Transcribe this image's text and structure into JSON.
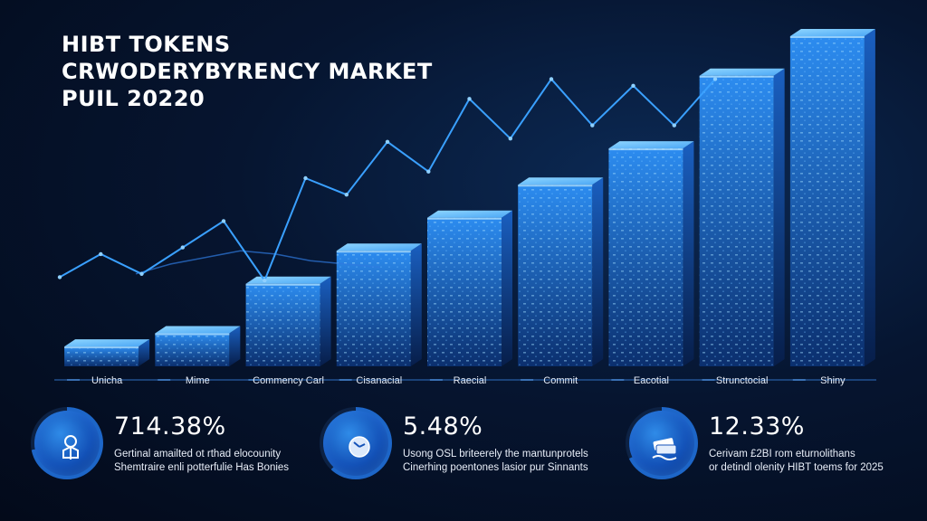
{
  "chart_data": {
    "type": "bar",
    "title": [
      "HIBT TOKENS",
      "CRWODERYBYRENCY MARKET",
      "PUIL 20220"
    ],
    "categories": [
      "Unicha",
      "Mime",
      "Commency Carl",
      "Cisanacial",
      "Raecial",
      "Commit",
      "Eacotial",
      "Strunctocial",
      "Shiny"
    ],
    "values": [
      6,
      10,
      25,
      35,
      45,
      55,
      66,
      88,
      100
    ],
    "ylim": [
      0,
      100
    ],
    "line_series": {
      "values": [
        27,
        34,
        28,
        36,
        44,
        26,
        57,
        52,
        68,
        59,
        81,
        69,
        87,
        73,
        85,
        73,
        87
      ],
      "color": "#3aa0ff"
    },
    "secondary_line": {
      "values": [
        28,
        31,
        33,
        35,
        34,
        32,
        31,
        30
      ],
      "color": "#2f7be0"
    },
    "grid": false,
    "bar_color": "#1f7fe0",
    "bar_top_color": "#6cc4ff"
  },
  "stats": [
    {
      "value": "714.38%",
      "line1": "Gertinal amailted ot rthad elocounity",
      "line2": "Shemtraire enli potterfulie Has Bonies",
      "icon": "token-icon"
    },
    {
      "value": "5.48%",
      "line1": "Usong OSL briteerely the mantunprotels",
      "line2": "Cinerhing poentones lasior pur Sinnants",
      "icon": "clock-icon"
    },
    {
      "value": "12.33%",
      "line1": "Cerivam £2BI rom eturnolithans",
      "line2": "or detindl olenity HIBT toems for 2025",
      "icon": "money-icon"
    }
  ],
  "colors": {
    "accent": "#3aa0ff",
    "ring_dark": "#0d2244",
    "ring_light": "#1d66c8"
  }
}
